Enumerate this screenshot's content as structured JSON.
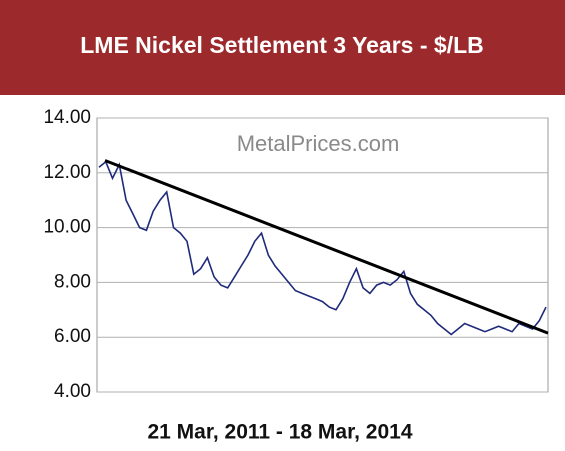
{
  "chart_data": {
    "type": "line",
    "title": "LME Nickel Settlement 3 Years - $/LB",
    "watermark": "MetalPrices.com",
    "x_label": "21 Mar, 2011 - 18 Mar, 2014",
    "categories": [
      null,
      null,
      null,
      null,
      null,
      null,
      null,
      null,
      null,
      null,
      null,
      null,
      null,
      null,
      null,
      null,
      null,
      null,
      null,
      null,
      null,
      null,
      null,
      null,
      null,
      null,
      null,
      null,
      null,
      null,
      null,
      null,
      null,
      null,
      null,
      null,
      null,
      null,
      null,
      null,
      null,
      null,
      null,
      null,
      null,
      null,
      null,
      null,
      null,
      null,
      null,
      null,
      null,
      null,
      null,
      null,
      null,
      null,
      null,
      null,
      null,
      null,
      null,
      null,
      null,
      null,
      null
    ],
    "series": [
      {
        "color": "#1f2a7a",
        "values": [
          12.2,
          12.4,
          11.8,
          12.3,
          11.0,
          10.5,
          10.0,
          9.9,
          10.6,
          11.0,
          11.3,
          10.0,
          9.8,
          9.5,
          8.3,
          8.5,
          8.9,
          8.2,
          7.9,
          7.8,
          8.2,
          8.6,
          9.0,
          9.5,
          9.8,
          9.0,
          8.6,
          8.3,
          8.0,
          7.7,
          7.6,
          7.5,
          7.4,
          7.3,
          7.1,
          7.0,
          7.4,
          8.0,
          8.5,
          7.8,
          7.6,
          7.9,
          8.0,
          7.9,
          8.1,
          8.4,
          7.6,
          7.2,
          7.0,
          6.8,
          6.5,
          6.3,
          6.1,
          6.3,
          6.5,
          6.4,
          6.3,
          6.2,
          6.3,
          6.4,
          6.3,
          6.2,
          6.5,
          6.4,
          6.3,
          6.6,
          7.1
        ]
      }
    ],
    "trendline": {
      "color": "#000000",
      "values": [
        12.45,
        6.15
      ]
    },
    "ylim": [
      4,
      14
    ],
    "yticks": [
      {
        "value": 4,
        "label": "4.00"
      },
      {
        "value": 6,
        "label": "6.00"
      },
      {
        "value": 8,
        "label": "8.00"
      },
      {
        "value": 10,
        "label": "10.00"
      },
      {
        "value": 12,
        "label": "12.00"
      },
      {
        "value": 14,
        "label": "14.00"
      }
    ],
    "grid": true,
    "header_color": "#9c2a2c"
  }
}
